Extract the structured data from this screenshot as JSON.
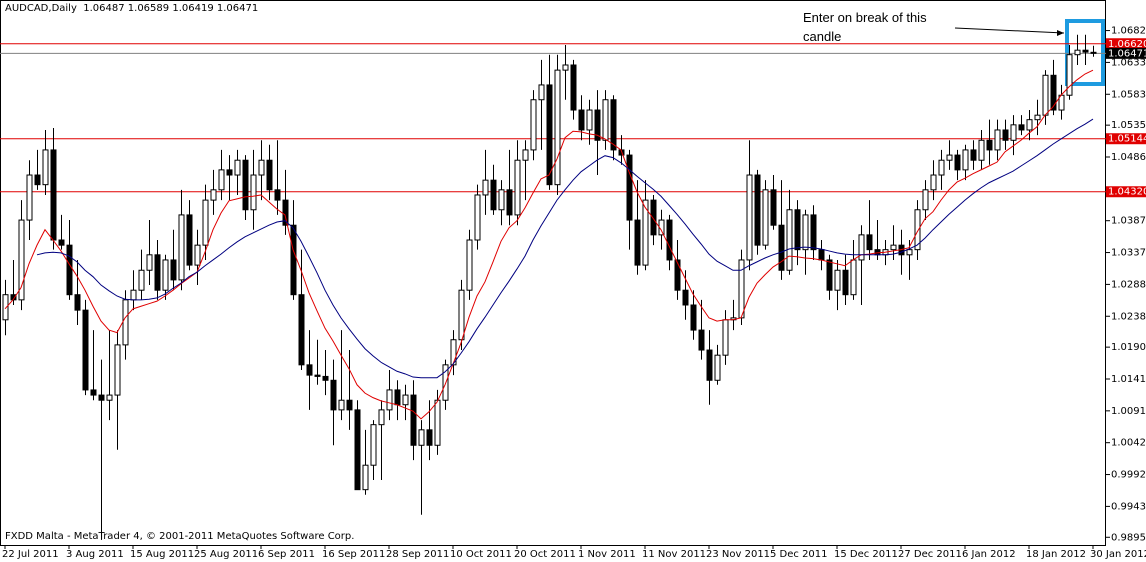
{
  "chart_data": {
    "type": "candlestick",
    "symbol": "AUDCAD,Daily",
    "footer": "FXDD Malta - MetaTrader 4, © 2001-2011 MetaQuotes Software Corp.",
    "annotation": "Enter on break of this candle",
    "categories": [
      "22 Jul 2011",
      null,
      null,
      null,
      null,
      null,
      null,
      null,
      "3 Aug 2011",
      null,
      null,
      null,
      null,
      null,
      null,
      null,
      "15 Aug 2011",
      null,
      null,
      null,
      null,
      null,
      null,
      null,
      "25 Aug 2011",
      null,
      null,
      null,
      null,
      null,
      null,
      null,
      "6 Sep 2011",
      null,
      null,
      null,
      null,
      null,
      null,
      null,
      "16 Sep 2011",
      null,
      null,
      null,
      null,
      null,
      null,
      null,
      "28 Sep 2011",
      null,
      null,
      null,
      null,
      null,
      null,
      null,
      "10 Oct 2011",
      null,
      null,
      null,
      null,
      null,
      null,
      null,
      "20 Oct 2011",
      null,
      null,
      null,
      null,
      null,
      null,
      null,
      "1 Nov 2011",
      null,
      null,
      null,
      null,
      null,
      null,
      null,
      "11 Nov 2011",
      null,
      null,
      null,
      null,
      null,
      null,
      null,
      "23 Nov 2011",
      null,
      null,
      null,
      null,
      null,
      null,
      null,
      "5 Dec 2011",
      null,
      null,
      null,
      null,
      null,
      null,
      null,
      "15 Dec 2011",
      null,
      null,
      null,
      null,
      null,
      null,
      null,
      "27 Dec 2011",
      null,
      null,
      null,
      null,
      null,
      null,
      null,
      "6 Jan 2012",
      null,
      null,
      null,
      null,
      null,
      null,
      null,
      "18 Jan 2012",
      null,
      null,
      null,
      null,
      null,
      null,
      null,
      "30 Jan 2012"
    ],
    "candles": {
      "up_color": "#ffffff",
      "down_color": "#000000",
      "edge_color": "#000000",
      "open": [
        1.0233,
        1.0272,
        1.0264,
        1.0388,
        1.0458,
        1.0443,
        1.0497,
        1.0357,
        1.0349,
        1.0272,
        1.0248,
        1.0124,
        1.0116,
        1.0108,
        1.0116,
        1.0194,
        1.0264,
        1.0279,
        1.031,
        1.0334,
        1.0279,
        1.0326,
        1.0295,
        1.0396,
        1.0318,
        1.0349,
        1.0419,
        1.0435,
        1.0466,
        1.0458,
        1.0481,
        1.0404,
        1.0458,
        1.0481,
        1.0435,
        1.0419,
        1.038,
        1.0272,
        1.0163,
        1.0147,
        1.0145,
        1.0139,
        1.0093,
        1.0108,
        1.0093,
        0.9969,
        1.0007,
        1.007,
        1.0093,
        1.0124,
        1.0101,
        1.0116,
        1.0038,
        1.0062,
        1.0038,
        1.0108,
        1.0163,
        1.0202,
        1.0279,
        1.0357,
        1.0427,
        1.045,
        1.0404,
        1.0435,
        1.0396,
        1.0481,
        1.0497,
        1.0575,
        1.0598,
        1.0443,
        1.0621,
        1.0629,
        1.0559,
        1.0528,
        1.0559,
        1.0512,
        1.0575,
        1.0497,
        1.0489,
        1.0388,
        1.0318,
        1.0419,
        1.0365,
        1.0388,
        1.0326,
        1.0279,
        1.0256,
        1.0217,
        1.0186,
        1.0139,
        1.0178,
        1.0233,
        1.0236,
        1.0326,
        1.0458,
        1.0349,
        1.0435,
        1.038,
        1.031,
        1.0404,
        1.0342,
        1.0396,
        1.0342,
        1.0326,
        1.0279,
        1.031,
        1.0272,
        1.0326,
        1.0365,
        1.0342,
        1.0334,
        1.0342,
        1.0349,
        1.0334,
        1.0342,
        1.0404,
        1.0435,
        1.0458,
        1.0481,
        1.0489,
        1.0466,
        1.0497,
        1.0481,
        1.0512,
        1.0497,
        1.0528,
        1.0512,
        1.0536,
        1.0528,
        1.0544,
        1.0551,
        1.0613,
        1.0559,
        1.0582,
        1.0645,
        1.0652,
        1.06487
      ],
      "high": [
        1.0295,
        1.0326,
        1.0419,
        1.0481,
        1.0497,
        1.0528,
        1.0531,
        1.0396,
        1.0388,
        1.0326,
        1.0264,
        1.0217,
        1.0171,
        1.0217,
        1.0217,
        1.0279,
        1.031,
        1.0342,
        1.0388,
        1.0357,
        1.0334,
        1.0373,
        1.0435,
        1.0419,
        1.0373,
        1.0443,
        1.0466,
        1.0497,
        1.0489,
        1.0497,
        1.0489,
        1.0497,
        1.0512,
        1.0505,
        1.0512,
        1.0466,
        1.0419,
        1.0342,
        1.0217,
        1.0202,
        1.0186,
        1.0171,
        1.0217,
        1.0186,
        1.0108,
        1.0062,
        1.0077,
        1.0108,
        1.0155,
        1.0139,
        1.0132,
        1.0139,
        1.0077,
        1.0108,
        1.0124,
        1.0171,
        1.0217,
        1.0295,
        1.0373,
        1.0443,
        1.0497,
        1.0474,
        1.045,
        1.0497,
        1.0512,
        1.0512,
        1.059,
        1.0637,
        1.0645,
        1.0645,
        1.066,
        1.0637,
        1.0582,
        1.0575,
        1.059,
        1.059,
        1.0582,
        1.052,
        1.0497,
        1.045,
        1.045,
        1.0427,
        1.0404,
        1.0396,
        1.0357,
        1.031,
        1.0279,
        1.0264,
        1.0217,
        1.0194,
        1.0248,
        1.0264,
        1.0342,
        1.0512,
        1.0466,
        1.045,
        1.0458,
        1.045,
        1.0435,
        1.0419,
        1.0404,
        1.0411,
        1.0357,
        1.0334,
        1.0326,
        1.0334,
        1.0357,
        1.038,
        1.0419,
        1.0388,
        1.0357,
        1.038,
        1.0373,
        1.0357,
        1.0419,
        1.045,
        1.0481,
        1.0497,
        1.0512,
        1.0497,
        1.0505,
        1.0512,
        1.0528,
        1.0544,
        1.0544,
        1.0544,
        1.0551,
        1.0551,
        1.0559,
        1.0575,
        1.0621,
        1.0637,
        1.0598,
        1.066,
        1.0676,
        1.0676,
        1.06589
      ],
      "low": [
        1.0209,
        1.0256,
        1.0248,
        1.0357,
        1.0435,
        1.0427,
        1.0342,
        1.0342,
        1.0264,
        1.0225,
        1.0116,
        1.0108,
        0.9891,
        1.0077,
        1.0031,
        1.0171,
        1.0248,
        1.0264,
        1.0287,
        1.0264,
        1.0264,
        1.0279,
        1.0279,
        1.031,
        1.0287,
        1.0326,
        1.0396,
        1.0419,
        1.0419,
        1.0427,
        1.0388,
        1.0373,
        1.0419,
        1.0419,
        1.0396,
        1.0365,
        1.0264,
        1.0155,
        1.0093,
        1.0132,
        1.0116,
        1.0038,
        1.0077,
        1.0062,
        0.9969,
        0.9961,
        0.9984,
        0.9984,
        1.0077,
        1.0077,
        1.0077,
        1.0015,
        0.993,
        1.0015,
        1.0023,
        1.0093,
        1.0147,
        1.0186,
        1.0264,
        1.0342,
        1.0396,
        1.0396,
        1.038,
        1.038,
        1.038,
        1.0419,
        1.0481,
        1.0497,
        1.0435,
        1.0427,
        1.0575,
        1.0544,
        1.0512,
        1.0505,
        1.0458,
        1.0497,
        1.0481,
        1.0474,
        1.0342,
        1.0303,
        1.031,
        1.0349,
        1.0342,
        1.031,
        1.0264,
        1.0233,
        1.0202,
        1.0171,
        1.0101,
        1.0132,
        1.0163,
        1.0217,
        1.0225,
        1.031,
        1.0334,
        1.0342,
        1.0373,
        1.0295,
        1.0303,
        1.0318,
        1.0303,
        1.0326,
        1.031,
        1.0264,
        1.0248,
        1.0256,
        1.0264,
        1.0256,
        1.0326,
        1.0326,
        1.0318,
        1.0326,
        1.0303,
        1.0295,
        1.0326,
        1.0388,
        1.0419,
        1.0435,
        1.0466,
        1.045,
        1.045,
        1.0466,
        1.0466,
        1.0474,
        1.0481,
        1.0497,
        1.0489,
        1.052,
        1.0512,
        1.052,
        1.0536,
        1.0551,
        1.0544,
        1.0575,
        1.0629,
        1.0629,
        1.06419
      ],
      "close": [
        1.0272,
        1.0264,
        1.0388,
        1.0458,
        1.0443,
        1.0497,
        1.0357,
        1.0349,
        1.0272,
        1.0248,
        1.0124,
        1.0116,
        1.0108,
        1.0116,
        1.0194,
        1.0264,
        1.0279,
        1.031,
        1.0334,
        1.0279,
        1.0326,
        1.0295,
        1.0396,
        1.0318,
        1.0349,
        1.0419,
        1.0435,
        1.0466,
        1.0458,
        1.0481,
        1.0404,
        1.0458,
        1.0481,
        1.0435,
        1.0419,
        1.038,
        1.0272,
        1.0163,
        1.0147,
        1.0145,
        1.0139,
        1.0093,
        1.0108,
        1.0093,
        0.9969,
        1.0007,
        1.007,
        1.0093,
        1.0124,
        1.0101,
        1.0116,
        1.0038,
        1.0062,
        1.0038,
        1.0108,
        1.0163,
        1.0202,
        1.0279,
        1.0357,
        1.0427,
        1.045,
        1.0404,
        1.0435,
        1.0396,
        1.0481,
        1.0497,
        1.0575,
        1.0598,
        1.0443,
        1.0621,
        1.0629,
        1.0559,
        1.0528,
        1.0559,
        1.0512,
        1.0575,
        1.0497,
        1.0489,
        1.0388,
        1.0318,
        1.0419,
        1.0365,
        1.0388,
        1.0326,
        1.0279,
        1.0256,
        1.0217,
        1.0186,
        1.0139,
        1.0178,
        1.0233,
        1.0236,
        1.0326,
        1.0458,
        1.0349,
        1.0435,
        1.038,
        1.031,
        1.0404,
        1.0342,
        1.0396,
        1.0342,
        1.0326,
        1.0279,
        1.031,
        1.0272,
        1.0326,
        1.0365,
        1.0342,
        1.0334,
        1.0342,
        1.0349,
        1.0334,
        1.0342,
        1.0404,
        1.0435,
        1.0458,
        1.0481,
        1.0489,
        1.0466,
        1.0497,
        1.0481,
        1.0512,
        1.0497,
        1.0528,
        1.0512,
        1.0536,
        1.0528,
        1.0544,
        1.0551,
        1.0613,
        1.0559,
        1.0582,
        1.0645,
        1.0652,
        1.0649,
        1.06471
      ]
    },
    "moving_averages": [
      {
        "color": "#e00000",
        "values": [
          1.025,
          1.0264,
          1.0283,
          1.032,
          1.0349,
          1.0373,
          1.0357,
          1.034,
          1.032,
          1.0301,
          1.0279,
          1.0254,
          1.0231,
          1.0217,
          1.0213,
          1.0236,
          1.025,
          1.0254,
          1.0258,
          1.0262,
          1.027,
          1.0279,
          1.0289,
          1.0298,
          1.0307,
          1.0338,
          1.0373,
          1.0399,
          1.0418,
          1.0421,
          1.0424,
          1.0425,
          1.0427,
          1.0416,
          1.0405,
          1.0396,
          1.0342,
          1.031,
          1.0275,
          1.0247,
          1.022,
          1.02,
          1.0178,
          1.0157,
          1.0132,
          1.0119,
          1.0112,
          1.0107,
          1.0104,
          1.0101,
          1.0096,
          1.0091,
          1.0079,
          1.009,
          1.0105,
          1.0132,
          1.0164,
          1.0197,
          1.0237,
          1.027,
          1.0292,
          1.0323,
          1.0355,
          1.0376,
          1.0387,
          1.0407,
          1.043,
          1.0452,
          1.0458,
          1.0483,
          1.0516,
          1.0526,
          1.0525,
          1.0522,
          1.052,
          1.0514,
          1.0506,
          1.0497,
          1.0463,
          1.0432,
          1.0408,
          1.0391,
          1.0373,
          1.0348,
          1.0323,
          1.0298,
          1.0273,
          1.0254,
          1.0236,
          1.0231,
          1.0233,
          1.0233,
          1.0236,
          1.0268,
          1.029,
          1.0303,
          1.0315,
          1.0323,
          1.0332,
          1.0331,
          1.0329,
          1.0328,
          1.0326,
          1.0323,
          1.032,
          1.0317,
          1.0326,
          1.0334,
          1.0335,
          1.0337,
          1.0338,
          1.034,
          1.0342,
          1.0345,
          1.0369,
          1.039,
          1.0401,
          1.0419,
          1.0435,
          1.0447,
          1.0453,
          1.046,
          1.0466,
          1.0472,
          1.0478,
          1.0494,
          1.0503,
          1.0512,
          1.0523,
          1.0533,
          1.0551,
          1.0564,
          1.0582,
          1.0595,
          1.0606,
          1.0615,
          1.0621
        ]
      },
      {
        "color": "#000080",
        "values": [
          null,
          null,
          null,
          null,
          1.0334,
          1.0337,
          1.0338,
          1.0337,
          1.0332,
          1.0323,
          1.031,
          1.03,
          1.0287,
          1.0278,
          1.027,
          1.0265,
          1.0264,
          1.0264,
          1.0265,
          1.0267,
          1.0273,
          1.0282,
          1.029,
          1.03,
          1.0307,
          1.0317,
          1.0326,
          1.0335,
          1.0345,
          1.0354,
          1.0362,
          1.0368,
          1.0374,
          1.038,
          1.0385,
          1.0387,
          1.0376,
          1.0355,
          1.0331,
          1.0306,
          1.0279,
          1.0256,
          1.0236,
          1.0219,
          1.0203,
          1.0188,
          1.0177,
          1.0167,
          1.016,
          1.0153,
          1.0149,
          1.0144,
          1.0143,
          1.0143,
          1.0143,
          1.0152,
          1.0164,
          1.0181,
          1.0199,
          1.0219,
          1.0237,
          1.0256,
          1.0275,
          1.0293,
          1.0312,
          1.0332,
          1.0357,
          1.0379,
          1.0399,
          1.0419,
          1.0435,
          1.045,
          1.0463,
          1.0472,
          1.0481,
          1.0488,
          1.0485,
          1.0477,
          1.0467,
          1.0456,
          1.0446,
          1.0436,
          1.0425,
          1.0411,
          1.0397,
          1.0382,
          1.0366,
          1.0351,
          1.0335,
          1.0324,
          1.0317,
          1.031,
          1.031,
          1.0317,
          1.0323,
          1.0329,
          1.0334,
          1.0338,
          1.0343,
          1.0345,
          1.0346,
          1.0345,
          1.0343,
          1.034,
          1.0337,
          1.0335,
          1.0334,
          1.0334,
          1.0334,
          1.0334,
          1.0334,
          1.0335,
          1.0338,
          1.0343,
          1.0349,
          1.036,
          1.0373,
          1.0385,
          1.0397,
          1.0408,
          1.0419,
          1.0429,
          1.0438,
          1.0446,
          1.0452,
          1.0458,
          1.0464,
          1.0472,
          1.048,
          1.0488,
          1.0497,
          1.0506,
          1.0514,
          1.0522,
          1.053,
          1.0537,
          1.0545
        ]
      }
    ],
    "hlines": [
      {
        "value": 1.0662,
        "label": "1.06620",
        "color": "#e00000"
      },
      {
        "value": 1.05144,
        "label": "1.05144",
        "color": "#e00000"
      },
      {
        "value": 1.0432,
        "label": "1.04320",
        "color": "#e00000"
      },
      {
        "value": 1.06471,
        "label": "1.06471",
        "color": "#808080"
      }
    ],
    "ylim": [
      0.9883,
      1.073
    ],
    "yticks": [
      1.06825,
      {
        "value": 1.0633,
        "label": "1.06330"
      },
      1.05835,
      1.05355,
      {
        "value": 1.0486,
        "label": "1.04860"
      },
      {
        "value": 1.0387,
        "label": "1.03870"
      },
      1.03375,
      {
        "value": 1.0288,
        "label": "1.02880"
      },
      1.02385,
      1.01905,
      {
        "value": 1.0141,
        "label": "1.01410"
      },
      1.00915,
      {
        "value": 1.0042,
        "label": "1.00420"
      },
      0.99925,
      {
        "value": 0.9943,
        "label": "0.99430"
      },
      {
        "value": 0.9895,
        "label": "0.98950"
      }
    ],
    "grid": false
  }
}
